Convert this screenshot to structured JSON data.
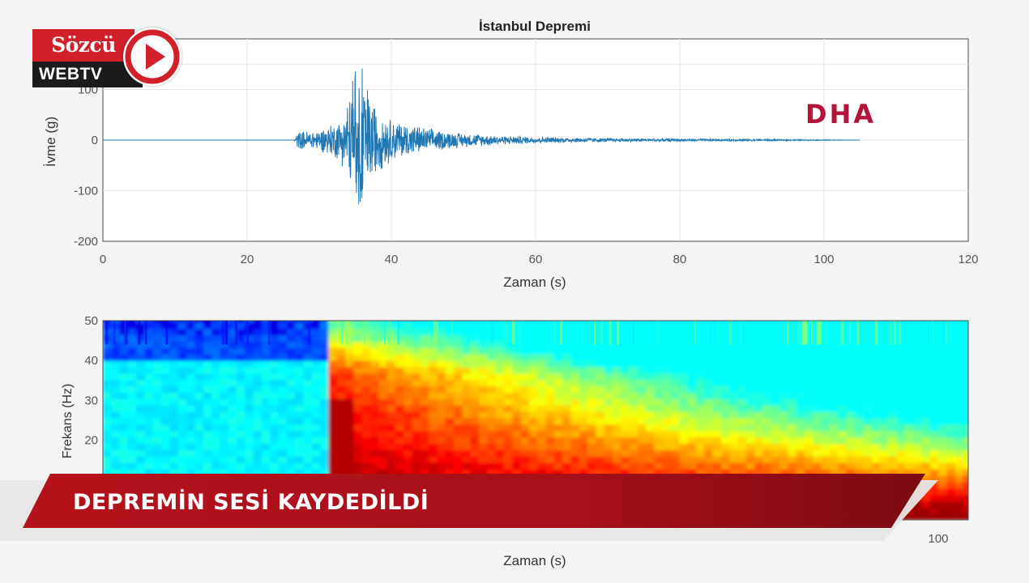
{
  "chart_data": [
    {
      "type": "line",
      "title": "İstanbul Depremi",
      "xlabel": "Zaman (s)",
      "ylabel": "İvme (g)",
      "xlim": [
        0,
        120
      ],
      "ylim": [
        -200,
        200
      ],
      "xticks": [
        0,
        20,
        40,
        60,
        80,
        100,
        120
      ],
      "yticks": [
        -200,
        -100,
        0,
        100
      ],
      "grid": true,
      "series_color": "#1f77b4",
      "envelope": {
        "t": [
          0,
          26.5,
          27,
          30,
          33,
          34.5,
          35.5,
          36.5,
          38,
          40,
          45,
          50,
          55,
          60,
          70,
          80,
          90,
          100,
          105
        ],
        "amplitude": [
          0,
          0,
          18,
          22,
          45,
          110,
          160,
          120,
          70,
          45,
          25,
          15,
          10,
          7,
          4,
          3,
          2,
          1,
          0
        ]
      }
    },
    {
      "type": "heatmap",
      "xlabel": "Zaman (s)",
      "ylabel": "Frekans (Hz)",
      "ylim": [
        0,
        50
      ],
      "yticks": [
        20,
        30,
        40,
        50
      ],
      "xticks": [
        100
      ],
      "colormap": "jet",
      "onset_s": 27
    }
  ],
  "overlays": {
    "logo_top": "Sözcü",
    "logo_bottom": "WEBTV",
    "dha": "DHA",
    "banner": "DEPREMİN SESİ KAYDEDİLDİ"
  },
  "colors": {
    "brand_red": "#d1202a",
    "banner_red": "#b5121b",
    "dha": "#b3163a",
    "trace": "#1f77b4"
  }
}
